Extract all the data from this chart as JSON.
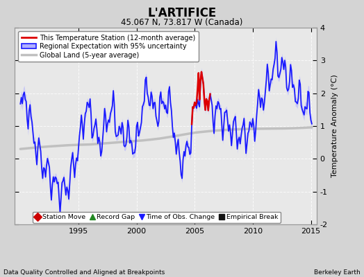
{
  "title": "L'ARTIFICE",
  "subtitle": "45.067 N, 73.817 W (Canada)",
  "ylabel": "Temperature Anomaly (°C)",
  "xlabel_left": "Data Quality Controlled and Aligned at Breakpoints",
  "xlabel_right": "Berkeley Earth",
  "xlim": [
    1989.5,
    2015.5
  ],
  "ylim": [
    -2,
    4
  ],
  "yticks": [
    -2,
    -1,
    0,
    1,
    2,
    3,
    4
  ],
  "xticks": [
    1995,
    2000,
    2005,
    2010,
    2015
  ],
  "bg_color": "#d4d4d4",
  "plot_bg_color": "#e8e8e8",
  "regional_color": "#1a1aff",
  "regional_fill_color": "#b0b0ff",
  "station_color": "#dd0000",
  "global_color": "#c0c0c0",
  "global_lw": 2.5,
  "legend_items": [
    {
      "label": "This Temperature Station (12-month average)",
      "color": "#dd0000",
      "lw": 2
    },
    {
      "label": "Regional Expectation with 95% uncertainty",
      "color": "#1a1aff",
      "fill": "#b0b0ff",
      "lw": 2
    },
    {
      "label": "Global Land (5-year average)",
      "color": "#c0c0c0",
      "lw": 2.5
    }
  ],
  "bottom_legend": [
    {
      "label": "Station Move",
      "color": "#cc0000",
      "marker": "D"
    },
    {
      "label": "Record Gap",
      "color": "#228822",
      "marker": "^"
    },
    {
      "label": "Time of Obs. Change",
      "color": "#1a1aff",
      "marker": "v"
    },
    {
      "label": "Empirical Break",
      "color": "#111111",
      "marker": "s"
    }
  ]
}
